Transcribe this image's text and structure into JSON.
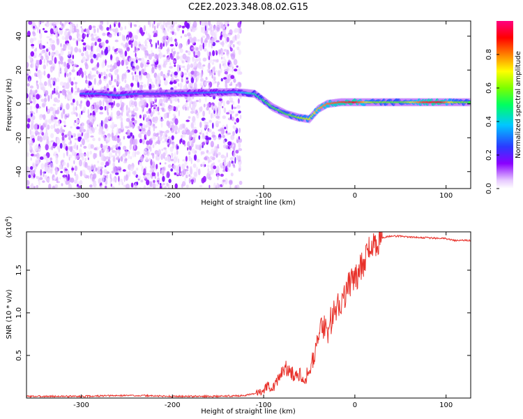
{
  "title": "C2E2.2023.348.08.02.G15",
  "chart_data": [
    {
      "type": "heatmap",
      "xlabel": "Height of straight line (km)",
      "ylabel": "Frequency (Hz)",
      "xlim": [
        -360,
        127
      ],
      "ylim": [
        -50,
        49
      ],
      "xticks": [
        -300,
        -200,
        -100,
        0,
        100
      ],
      "xtick_labels": [
        "-300",
        "-200",
        "-100",
        "0",
        "100"
      ],
      "yticks": [
        -40,
        -20,
        0,
        20,
        40
      ],
      "ytick_labels": [
        "-40",
        "-20",
        "0",
        "20",
        "40"
      ],
      "grid": false,
      "colorbar": {
        "label": "Normalized spectral amplitude",
        "range": [
          0,
          1
        ],
        "ticks": [
          0.0,
          0.2,
          0.4,
          0.6,
          0.8
        ],
        "tick_labels": [
          "0.0",
          "0.2",
          "0.4",
          "0.6",
          "0.8"
        ],
        "colormap": "rainbow (white - purple - blue - cyan - green - yellow - red - magenta)"
      },
      "noise_region": {
        "x_range": [
          -360,
          -125
        ],
        "y_range": [
          -50,
          49
        ],
        "dominant_amplitude": 0.1
      },
      "ridge": [
        {
          "x": -300,
          "y": 6,
          "amp": 0.3
        },
        {
          "x": -280,
          "y": 6,
          "amp": 0.3
        },
        {
          "x": -260,
          "y": 5,
          "amp": 0.32
        },
        {
          "x": -240,
          "y": 6,
          "amp": 0.28
        },
        {
          "x": -220,
          "y": 6,
          "amp": 0.25
        },
        {
          "x": -130,
          "y": 7,
          "amp": 0.35
        },
        {
          "x": -110,
          "y": 6,
          "amp": 0.45
        },
        {
          "x": -100,
          "y": 2,
          "amp": 0.5
        },
        {
          "x": -90,
          "y": -2,
          "amp": 0.55
        },
        {
          "x": -75,
          "y": -6,
          "amp": 0.55
        },
        {
          "x": -62,
          "y": -8,
          "amp": 0.6
        },
        {
          "x": -50,
          "y": -9,
          "amp": 0.65
        },
        {
          "x": -40,
          "y": -3,
          "amp": 0.75
        },
        {
          "x": -30,
          "y": 0,
          "amp": 0.8
        },
        {
          "x": -15,
          "y": 1,
          "amp": 0.85
        },
        {
          "x": 0,
          "y": 1,
          "amp": 0.9
        },
        {
          "x": 20,
          "y": 1,
          "amp": 0.6
        },
        {
          "x": 50,
          "y": 1,
          "amp": 0.55
        },
        {
          "x": 75,
          "y": 1,
          "amp": 0.85
        },
        {
          "x": 95,
          "y": 1,
          "amp": 0.9
        },
        {
          "x": 110,
          "y": 1,
          "amp": 0.6
        },
        {
          "x": 127,
          "y": 1,
          "amp": 0.55
        }
      ]
    },
    {
      "type": "line",
      "xlabel": "Height of straight line (km)",
      "ylabel": "SNR (10 * v/v)",
      "y_multiplier_label": "(x10",
      "y_multiplier_exponent": "4",
      "y_multiplier_suffix": ")",
      "xlim": [
        -360,
        127
      ],
      "ylim": [
        0,
        1.95
      ],
      "xticks": [
        -300,
        -200,
        -100,
        0,
        100
      ],
      "xtick_labels": [
        "-300",
        "-200",
        "-100",
        "0",
        "100"
      ],
      "yticks": [
        0.5,
        1.0,
        1.5
      ],
      "ytick_labels": [
        "0.5",
        "1.0",
        "1.5"
      ],
      "grid": false,
      "series": [
        {
          "color": "#e8312a",
          "x": [
            -360,
            -300,
            -250,
            -240,
            -200,
            -150,
            -120,
            -110,
            -100,
            -95,
            -90,
            -85,
            -80,
            -75,
            -70,
            -65,
            -60,
            -55,
            -50,
            -45,
            -40,
            -35,
            -30,
            -25,
            -20,
            -15,
            -10,
            -5,
            0,
            5,
            10,
            15,
            20,
            25,
            30,
            40,
            50,
            60,
            80,
            100,
            110,
            127
          ],
          "y": [
            0.02,
            0.02,
            0.03,
            0.03,
            0.02,
            0.02,
            0.03,
            0.05,
            0.1,
            0.15,
            0.12,
            0.2,
            0.3,
            0.35,
            0.3,
            0.25,
            0.3,
            0.2,
            0.35,
            0.5,
            0.7,
            0.85,
            0.8,
            0.95,
            1.05,
            1.15,
            1.25,
            1.35,
            1.4,
            1.5,
            1.6,
            1.72,
            1.8,
            1.85,
            1.88,
            1.9,
            1.9,
            1.89,
            1.88,
            1.87,
            1.85,
            1.85
          ]
        }
      ]
    }
  ]
}
